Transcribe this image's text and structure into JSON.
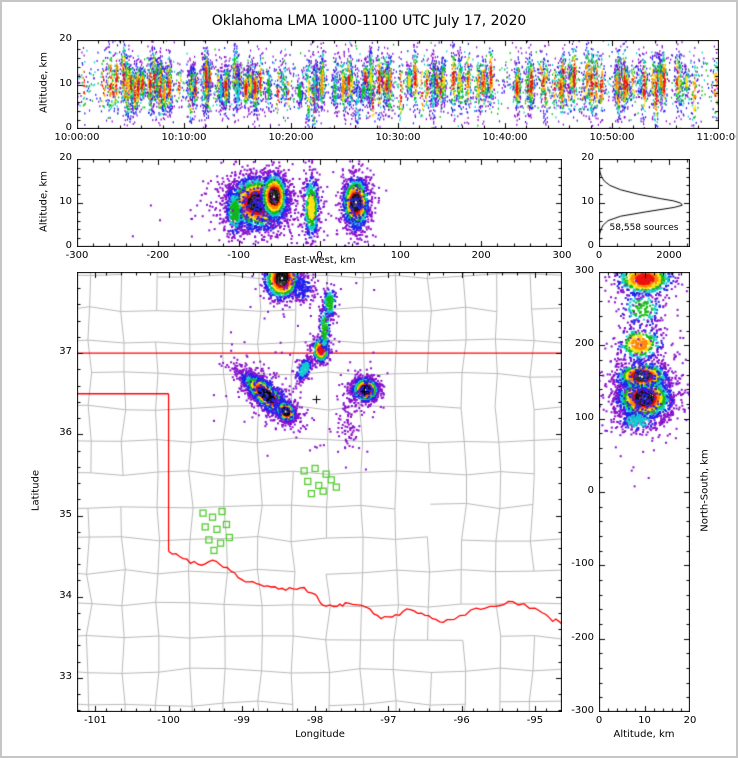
{
  "title": "Oklahoma LMA 1000-1100 UTC July 17, 2020",
  "frame": {
    "border_color": "#c6c6c6",
    "background": "#ffffff"
  },
  "palette_center_to_edge": [
    "#ffffff",
    "#ee1111",
    "#ff8800",
    "#ffe011",
    "#11bb11",
    "#11cccc",
    "#2222ee",
    "#8811cc"
  ],
  "chart_data": [
    {
      "id": "time_height",
      "type": "scatter",
      "xlabel": "",
      "ylabel": "Altitude, km",
      "x_ticks_labels": [
        "10:00:00",
        "10:10:00",
        "10:20:00",
        "10:30:00",
        "10:40:00",
        "10:50:00",
        "11:00:00"
      ],
      "xlim": [
        0,
        3600
      ],
      "xticks": [
        0,
        600,
        1200,
        1800,
        2400,
        3000,
        3600
      ],
      "x_minor": 120,
      "ylim": [
        0,
        20
      ],
      "yticks": [
        0,
        10,
        20
      ],
      "y_minor": 2,
      "bursts": {
        "n_bursts": 150,
        "alt_mean": 10,
        "alt_sd": 1.3,
        "spread_min": 1.6,
        "spread_max": 4.5,
        "pts_min": 25,
        "pts_max": 130
      },
      "background": {
        "n": 1600,
        "alt_mean": 10,
        "alt_sd": 3.6
      }
    },
    {
      "id": "ew_height",
      "type": "scatter",
      "xlabel": "East-West, km",
      "ylabel": "Altitude, km",
      "xlim": [
        -300,
        300
      ],
      "xticks": [
        -300,
        -200,
        -100,
        0,
        100,
        200,
        300
      ],
      "x_minor": 20,
      "ylim": [
        0,
        20
      ],
      "yticks": [
        0,
        10,
        20
      ],
      "y_minor": 2,
      "clusters": [
        {
          "cx": -76,
          "cy": 10,
          "sx": 19,
          "sy": 3.0,
          "rot": 0,
          "n": 2400,
          "peak": "white"
        },
        {
          "cx": -74,
          "cy": 9,
          "sx": 30,
          "sy": 4.5,
          "rot": 0,
          "n": 320,
          "peak": "blue"
        },
        {
          "cx": -105,
          "cy": 8,
          "sx": 6,
          "sy": 3,
          "rot": 0,
          "n": 240,
          "peak": "green"
        },
        {
          "cx": -56,
          "cy": 11.5,
          "sx": 8,
          "sy": 2.6,
          "rot": 0,
          "n": 850,
          "peak": "white"
        },
        {
          "cx": -10,
          "cy": 9,
          "sx": 5,
          "sy": 3.8,
          "rot": 0,
          "n": 460,
          "peak": "yellow"
        },
        {
          "cx": 45,
          "cy": 10,
          "sx": 8,
          "sy": 2.9,
          "rot": 0,
          "n": 1200,
          "peak": "white"
        },
        {
          "cx": 45,
          "cy": 9,
          "sx": 13,
          "sy": 4.5,
          "rot": 0,
          "n": 170,
          "peak": "blue"
        },
        {
          "cx": -40,
          "cy": 8,
          "sx": 70,
          "sy": 4,
          "rot": 0,
          "n": 60,
          "peak": "purple"
        }
      ]
    },
    {
      "id": "alt_histogram",
      "type": "line",
      "annotation": "58,558 sources",
      "xlabel": "",
      "ylabel": "",
      "xlim": [
        0,
        2600
      ],
      "xticks": [
        0,
        2000
      ],
      "x_minor": 500,
      "ylim": [
        0,
        20
      ],
      "yticks": [
        0,
        10,
        20
      ],
      "y_minor": 2,
      "profile": [
        [
          0,
          0
        ],
        [
          2,
          5
        ],
        [
          3,
          20
        ],
        [
          4,
          55
        ],
        [
          5,
          120
        ],
        [
          6,
          260
        ],
        [
          7,
          620
        ],
        [
          8,
          1350
        ],
        [
          9,
          2150
        ],
        [
          9.5,
          2380
        ],
        [
          10,
          2330
        ],
        [
          10.5,
          2120
        ],
        [
          11,
          1750
        ],
        [
          12,
          1120
        ],
        [
          13,
          620
        ],
        [
          14,
          310
        ],
        [
          15,
          150
        ],
        [
          16,
          70
        ],
        [
          17,
          30
        ],
        [
          18,
          12
        ],
        [
          19,
          4
        ],
        [
          20,
          0
        ]
      ]
    },
    {
      "id": "map",
      "type": "scatter",
      "xlabel": "Longitude",
      "ylabel": "Latitude",
      "xlim": [
        -101.25,
        -94.63
      ],
      "xticks": [
        -101,
        -100,
        -99,
        -98,
        -97,
        -96,
        -95
      ],
      "x_minor": 0.2,
      "ylim": [
        32.58,
        38.0
      ],
      "yticks": [
        33,
        34,
        35,
        36,
        37
      ],
      "y_minor": 0.2,
      "border_color": "#ff0000",
      "county_color": "#b9b9b9",
      "station_color": "#55cc33",
      "state_borders": [
        [
          [
            -101.25,
            37.0
          ],
          [
            -94.63,
            37.0
          ]
        ],
        [
          [
            -101.25,
            36.5
          ],
          [
            -100.0,
            36.5
          ]
        ],
        [
          [
            -100.0,
            36.5
          ],
          [
            -100.0,
            34.56
          ]
        ]
      ],
      "red_river": [
        [
          -100.0,
          34.56
        ],
        [
          -99.8,
          34.47
        ],
        [
          -99.6,
          34.4
        ],
        [
          -99.4,
          34.45
        ],
        [
          -99.2,
          34.36
        ],
        [
          -99.0,
          34.21
        ],
        [
          -98.8,
          34.16
        ],
        [
          -98.6,
          34.12
        ],
        [
          -98.4,
          34.08
        ],
        [
          -98.2,
          34.11
        ],
        [
          -98.0,
          34.03
        ],
        [
          -97.9,
          33.9
        ],
        [
          -97.7,
          33.88
        ],
        [
          -97.55,
          33.92
        ],
        [
          -97.3,
          33.87
        ],
        [
          -97.1,
          33.73
        ],
        [
          -96.9,
          33.78
        ],
        [
          -96.7,
          33.84
        ],
        [
          -96.5,
          33.77
        ],
        [
          -96.3,
          33.69
        ],
        [
          -96.1,
          33.72
        ],
        [
          -95.8,
          33.86
        ],
        [
          -95.55,
          33.88
        ],
        [
          -95.3,
          33.94
        ],
        [
          -95.0,
          33.86
        ],
        [
          -94.8,
          33.74
        ],
        [
          -94.63,
          33.66
        ]
      ],
      "stations": [
        [
          -99.53,
          35.03
        ],
        [
          -99.4,
          34.98
        ],
        [
          -99.27,
          35.05
        ],
        [
          -99.5,
          34.86
        ],
        [
          -99.34,
          34.83
        ],
        [
          -99.21,
          34.89
        ],
        [
          -99.45,
          34.7
        ],
        [
          -99.29,
          34.66
        ],
        [
          -99.17,
          34.73
        ],
        [
          -99.38,
          34.57
        ],
        [
          -98.15,
          35.55
        ],
        [
          -98.0,
          35.58
        ],
        [
          -97.85,
          35.51
        ],
        [
          -98.1,
          35.42
        ],
        [
          -97.95,
          35.37
        ],
        [
          -97.78,
          35.44
        ],
        [
          -98.05,
          35.27
        ],
        [
          -97.89,
          35.3
        ],
        [
          -97.71,
          35.35
        ]
      ],
      "plus_markers": [
        [
          -97.99,
          36.44
        ],
        [
          -97.33,
          36.53
        ]
      ],
      "clusters": [
        {
          "cx": -98.66,
          "cy": 36.48,
          "sx": 0.2,
          "sy": 0.062,
          "rot": -38,
          "n": 2300,
          "peak": "white"
        },
        {
          "cx": -98.4,
          "cy": 36.28,
          "sx": 0.07,
          "sy": 0.05,
          "rot": -38,
          "n": 650,
          "peak": "white"
        },
        {
          "cx": -98.6,
          "cy": 36.45,
          "sx": 0.3,
          "sy": 0.14,
          "rot": -38,
          "n": 300,
          "peak": "blue"
        },
        {
          "cx": -98.15,
          "cy": 36.8,
          "sx": 0.05,
          "sy": 0.09,
          "rot": -30,
          "n": 190,
          "peak": "cyan"
        },
        {
          "cx": -97.92,
          "cy": 37.04,
          "sx": 0.055,
          "sy": 0.075,
          "rot": 0,
          "n": 420,
          "peak": "red"
        },
        {
          "cx": -97.87,
          "cy": 37.3,
          "sx": 0.04,
          "sy": 0.16,
          "rot": 0,
          "n": 160,
          "peak": "green"
        },
        {
          "cx": -97.8,
          "cy": 37.62,
          "sx": 0.05,
          "sy": 0.1,
          "rot": 0,
          "n": 140,
          "peak": "green"
        },
        {
          "cx": -98.45,
          "cy": 37.92,
          "sx": 0.12,
          "sy": 0.13,
          "rot": 0,
          "n": 1150,
          "peak": "white"
        },
        {
          "cx": -98.18,
          "cy": 37.8,
          "sx": 0.1,
          "sy": 0.1,
          "rot": 0,
          "n": 170,
          "peak": "blue"
        },
        {
          "cx": -97.31,
          "cy": 36.55,
          "sx": 0.085,
          "sy": 0.07,
          "rot": 0,
          "n": 1000,
          "peak": "white"
        },
        {
          "cx": -97.33,
          "cy": 36.55,
          "sx": 0.14,
          "sy": 0.12,
          "rot": 0,
          "n": 130,
          "peak": "blue"
        },
        {
          "cx": -97.55,
          "cy": 36.12,
          "sx": 0.09,
          "sy": 0.18,
          "rot": 0,
          "n": 80,
          "peak": "purple"
        },
        {
          "cx": -98.2,
          "cy": 37.0,
          "sx": 0.5,
          "sy": 0.7,
          "rot": 0,
          "n": 60,
          "peak": "purple"
        }
      ]
    },
    {
      "id": "ns_height",
      "type": "scatter",
      "xlabel": "Altitude, km",
      "ylabel": "North-South, km",
      "xlim": [
        0,
        20
      ],
      "xticks": [
        0,
        10,
        20
      ],
      "x_minor": 2,
      "ylim": [
        -300,
        300
      ],
      "yticks": [
        -300,
        -200,
        -100,
        0,
        100,
        200,
        300
      ],
      "y_minor": 20,
      "clusters": [
        {
          "cx": 10,
          "cy": 128,
          "sx": 3.0,
          "sy": 14,
          "rot": 0,
          "n": 2000,
          "peak": "white"
        },
        {
          "cx": 9.5,
          "cy": 158,
          "sx": 2.8,
          "sy": 9,
          "rot": 0,
          "n": 750,
          "peak": "white"
        },
        {
          "cx": 10,
          "cy": 140,
          "sx": 4.5,
          "sy": 34,
          "rot": 0,
          "n": 360,
          "peak": "blue"
        },
        {
          "cx": 8.5,
          "cy": 97,
          "sx": 2.6,
          "sy": 8,
          "rot": 0,
          "n": 180,
          "peak": "cyan"
        },
        {
          "cx": 9,
          "cy": 202,
          "sx": 2.6,
          "sy": 12,
          "rot": 0,
          "n": 320,
          "peak": "orange"
        },
        {
          "cx": 9.5,
          "cy": 250,
          "sx": 2.6,
          "sy": 14,
          "rot": 0,
          "n": 180,
          "peak": "green"
        },
        {
          "cx": 10,
          "cy": 290,
          "sx": 3.2,
          "sy": 11,
          "rot": 0,
          "n": 760,
          "peak": "red"
        },
        {
          "cx": 9,
          "cy": 190,
          "sx": 4,
          "sy": 75,
          "rot": 0,
          "n": 80,
          "peak": "purple"
        }
      ]
    }
  ]
}
